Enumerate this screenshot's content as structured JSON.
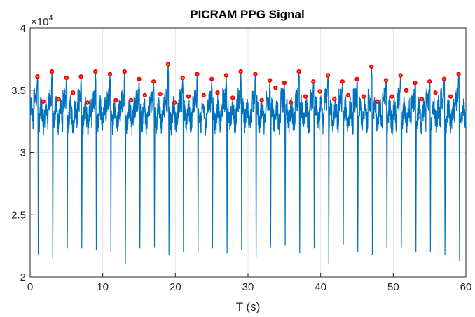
{
  "chart_data": {
    "type": "line",
    "title": "PICRAM PPG Signal",
    "xlabel": "T (s)",
    "ylabel": "",
    "xlim": [
      0,
      60
    ],
    "ylim": [
      20000,
      40000
    ],
    "y_exponent_label": "×10",
    "y_exponent": "4",
    "x_ticks": [
      0,
      10,
      20,
      30,
      40,
      50,
      60
    ],
    "x_tick_labels": [
      "0",
      "10",
      "20",
      "30",
      "40",
      "50",
      "60"
    ],
    "y_ticks": [
      20000,
      25000,
      30000,
      35000,
      40000
    ],
    "y_tick_labels": [
      "2",
      "2.5",
      "3",
      "3.5",
      "4"
    ],
    "grid": true,
    "baseline": 33000,
    "series": [
      {
        "name": "",
        "color": "#0072BD",
        "kind": "line",
        "beats": [
          {
            "t": 1.0,
            "peak": 36100,
            "trough": 21800
          },
          {
            "t": 3.0,
            "peak": 36500,
            "trough": 21500
          },
          {
            "t": 5.0,
            "peak": 36000,
            "trough": 22300
          },
          {
            "t": 7.0,
            "peak": 36100,
            "trough": 22300
          },
          {
            "t": 9.0,
            "peak": 36500,
            "trough": 22200
          },
          {
            "t": 11.0,
            "peak": 36300,
            "trough": 22000
          },
          {
            "t": 13.0,
            "peak": 36500,
            "trough": 21000
          },
          {
            "t": 15.0,
            "peak": 35900,
            "trough": 22300
          },
          {
            "t": 17.0,
            "peak": 35700,
            "trough": 22400
          },
          {
            "t": 19.0,
            "peak": 37100,
            "trough": 21800
          },
          {
            "t": 21.0,
            "peak": 36000,
            "trough": 22000
          },
          {
            "t": 23.0,
            "peak": 36300,
            "trough": 21900
          },
          {
            "t": 25.0,
            "peak": 35900,
            "trough": 22300
          },
          {
            "t": 27.0,
            "peak": 36200,
            "trough": 21900
          },
          {
            "t": 29.0,
            "peak": 36500,
            "trough": 22200
          },
          {
            "t": 31.0,
            "peak": 36300,
            "trough": 21600
          },
          {
            "t": 33.0,
            "peak": 35800,
            "trough": 22400
          },
          {
            "t": 35.0,
            "peak": 35600,
            "trough": 22500
          },
          {
            "t": 37.0,
            "peak": 36500,
            "trough": 21900
          },
          {
            "t": 39.0,
            "peak": 35700,
            "trough": 22300
          },
          {
            "t": 41.0,
            "peak": 36200,
            "trough": 21000
          },
          {
            "t": 43.0,
            "peak": 35700,
            "trough": 22600
          },
          {
            "t": 45.0,
            "peak": 35900,
            "trough": 22000
          },
          {
            "t": 47.0,
            "peak": 36900,
            "trough": 21800
          },
          {
            "t": 49.0,
            "peak": 35800,
            "trough": 22300
          },
          {
            "t": 51.0,
            "peak": 36200,
            "trough": 22400
          },
          {
            "t": 53.0,
            "peak": 35600,
            "trough": 22000
          },
          {
            "t": 55.0,
            "peak": 35700,
            "trough": 22000
          },
          {
            "t": 57.0,
            "peak": 35900,
            "trough": 21800
          },
          {
            "t": 59.0,
            "peak": 36300,
            "trough": 21300
          }
        ]
      },
      {
        "name": "",
        "color": "#FF0000",
        "kind": "markers",
        "x": [
          1.0,
          1.8,
          3.0,
          3.9,
          5.0,
          5.9,
          7.0,
          7.9,
          9.0,
          11.0,
          11.8,
          13.0,
          13.9,
          15.0,
          15.8,
          17.0,
          17.9,
          19.0,
          19.9,
          21.0,
          21.8,
          23.0,
          23.9,
          25.0,
          25.8,
          27.0,
          27.9,
          29.0,
          31.0,
          31.9,
          33.0,
          33.8,
          35.0,
          35.9,
          37.0,
          37.9,
          39.0,
          39.9,
          41.0,
          41.9,
          43.0,
          43.8,
          45.0,
          45.9,
          47.0,
          47.8,
          49.0,
          49.8,
          51.0,
          51.8,
          53.0,
          53.9,
          55.0,
          55.8,
          57.0,
          57.9,
          59.0
        ],
        "y": [
          36100,
          34100,
          36500,
          34300,
          36000,
          34800,
          36100,
          34000,
          36500,
          36300,
          34200,
          36500,
          34200,
          35900,
          34600,
          35700,
          34700,
          37100,
          34000,
          36000,
          34500,
          36300,
          34600,
          35900,
          34800,
          36200,
          34400,
          36500,
          36300,
          34200,
          35800,
          35200,
          35600,
          34000,
          36500,
          34500,
          35700,
          34900,
          36200,
          34300,
          35700,
          34600,
          35900,
          34500,
          36900,
          34100,
          35800,
          34500,
          36200,
          35000,
          35600,
          34300,
          35700,
          34800,
          35900,
          34500,
          36300
        ]
      }
    ]
  }
}
